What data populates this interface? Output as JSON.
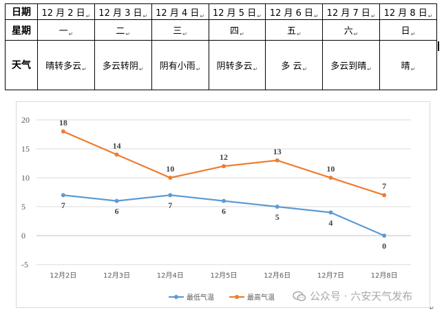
{
  "table": {
    "row_date": {
      "label": "日期",
      "cells": [
        "12 月 2 日",
        "12 月 3 日",
        "12 月 4 日",
        "12 月 5 日",
        "12 月 6 日",
        "12 月 7 日",
        "12 月 8 日"
      ]
    },
    "row_week": {
      "label": "星期",
      "cells": [
        "一",
        "二",
        "三",
        "四",
        "五",
        "六",
        "日"
      ]
    },
    "row_weather": {
      "label": "天气",
      "cells": [
        "晴转多云",
        "多云转阴",
        "阴有小雨",
        "阴转多云",
        "多 云",
        "多云到晴",
        "晴"
      ]
    },
    "paragraph_mark": "↵"
  },
  "chart_data": {
    "type": "line",
    "categories": [
      "12月2日",
      "12月3日",
      "12月4日",
      "12月5日",
      "12月6日",
      "12月7日",
      "12月8日"
    ],
    "series": [
      {
        "name": "最低气温",
        "values": [
          7,
          6,
          7,
          6,
          5,
          4,
          0
        ],
        "color": "#5b9bd5",
        "label_position": "below"
      },
      {
        "name": "最高气温",
        "values": [
          18,
          14,
          10,
          12,
          13,
          10,
          7
        ],
        "color": "#ed7d31",
        "label_position": "above"
      }
    ],
    "ylim": [
      -5,
      20
    ],
    "yticks": [
      -5,
      0,
      5,
      10,
      15,
      20
    ],
    "grid": true,
    "legend_position": "bottom-center",
    "xlabel": "",
    "ylabel": ""
  },
  "watermark": {
    "text": "公众号 · 六安天气发布"
  }
}
